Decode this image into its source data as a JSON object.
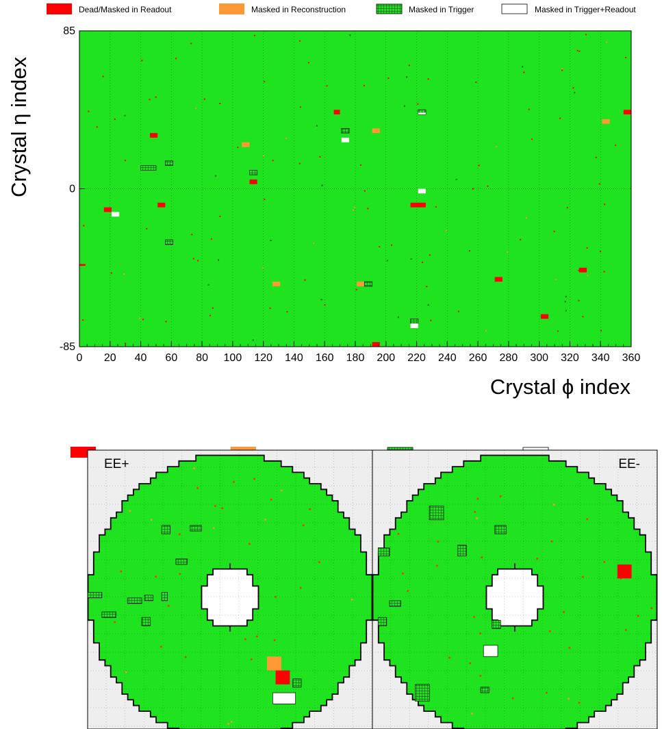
{
  "colors": {
    "active": "#1ee31e",
    "dead_readout": "#ff0000",
    "masked_reco": "#ff9933",
    "masked_trigger": "#1ee31e",
    "masked_trigger_readout": "#ffffff",
    "outside": "#eeeeee"
  },
  "legend": {
    "dead": "Dead/Masked in Readout",
    "reco": "Masked in Reconstruction",
    "trigger": "Masked in Trigger",
    "trigger_readout": "Masked in Trigger+Readout"
  },
  "barrel": {
    "xlabel_prefix": "Crystal",
    "xlabel_symbol": "ϕ",
    "xlabel_suffix": "index",
    "ylabel_prefix": "Crystal",
    "ylabel_symbol": "η",
    "ylabel_suffix": "index",
    "xlim": [
      0,
      360
    ],
    "ylim": [
      -85,
      85
    ],
    "xticks": [
      "0",
      "20",
      "40",
      "60",
      "80",
      "100",
      "120",
      "140",
      "160",
      "180",
      "200",
      "220",
      "240",
      "260",
      "280",
      "300",
      "320",
      "340",
      "360"
    ],
    "yticks": [
      "85",
      "0",
      "-85"
    ],
    "dead_regions": [
      {
        "phi": [
          0,
          4
        ],
        "eta": [
          -83,
          -81
        ]
      },
      {
        "phi": [
          166,
          170
        ],
        "eta": [
          80,
          85
        ]
      },
      {
        "phi": [
          355,
          360
        ],
        "eta": [
          80,
          85
        ]
      },
      {
        "phi": [
          46,
          51
        ],
        "eta": [
          55,
          60
        ]
      },
      {
        "phi": [
          111,
          116
        ],
        "eta": [
          5,
          10
        ]
      },
      {
        "phi": [
          16,
          21
        ],
        "eta": [
          -25,
          -20
        ]
      },
      {
        "phi": [
          51,
          56
        ],
        "eta": [
          -20,
          -15
        ]
      },
      {
        "phi": [
          216,
          226
        ],
        "eta": [
          -20,
          -15
        ]
      },
      {
        "phi": [
          271,
          276
        ],
        "eta": [
          -100,
          -95
        ]
      },
      {
        "phi": [
          326,
          331
        ],
        "eta": [
          -90,
          -85
        ]
      },
      {
        "phi": [
          301,
          306
        ],
        "eta": [
          -140,
          -135
        ]
      },
      {
        "phi": [
          191,
          196
        ],
        "eta": [
          -170,
          -165
        ]
      }
    ],
    "reco_regions": [
      {
        "phi": [
          106,
          111
        ],
        "eta": [
          45,
          50
        ]
      },
      {
        "phi": [
          191,
          196
        ],
        "eta": [
          60,
          65
        ]
      },
      {
        "phi": [
          341,
          346
        ],
        "eta": [
          70,
          75
        ]
      },
      {
        "phi": [
          126,
          131
        ],
        "eta": [
          -105,
          -100
        ]
      },
      {
        "phi": [
          181,
          186
        ],
        "eta": [
          -105,
          -100
        ]
      }
    ],
    "trigger_regions": [
      {
        "phi": [
          40,
          50
        ],
        "eta": [
          20,
          25
        ]
      },
      {
        "phi": [
          56,
          61
        ],
        "eta": [
          25,
          30
        ]
      },
      {
        "phi": [
          111,
          116
        ],
        "eta": [
          15,
          20
        ]
      },
      {
        "phi": [
          171,
          176
        ],
        "eta": [
          60,
          65
        ]
      },
      {
        "phi": [
          56,
          61
        ],
        "eta": [
          -60,
          -55
        ]
      },
      {
        "phi": [
          186,
          191
        ],
        "eta": [
          -105,
          -100
        ]
      },
      {
        "phi": [
          216,
          221
        ],
        "eta": [
          -145,
          -140
        ]
      },
      {
        "phi": [
          221,
          226
        ],
        "eta": [
          80,
          85
        ]
      }
    ],
    "trigger_readout_regions": [
      {
        "phi": [
          171,
          176
        ],
        "eta": [
          50,
          55
        ]
      },
      {
        "phi": [
          221,
          226
        ],
        "eta": [
          -5,
          0
        ]
      },
      {
        "phi": [
          21,
          26
        ],
        "eta": [
          -30,
          -25
        ]
      },
      {
        "phi": [
          216,
          221
        ],
        "eta": [
          -150,
          -145
        ]
      },
      {
        "phi": [
          221,
          226
        ],
        "eta": [
          80,
          82
        ]
      }
    ]
  },
  "endcap": {
    "left_label": "EE+",
    "right_label": "EE-",
    "dead_regions": [
      {
        "side": "plus",
        "x": [
          66,
          71
        ],
        "y": [
          16,
          21
        ]
      },
      {
        "side": "minus",
        "x": [
          86,
          91
        ],
        "y": [
          54,
          59
        ]
      }
    ],
    "reco_regions": [
      {
        "side": "plus",
        "x": [
          63,
          68
        ],
        "y": [
          21,
          26
        ]
      }
    ],
    "trigger_regions": [
      {
        "side": "plus",
        "x": [
          26,
          29
        ],
        "y": [
          70,
          73
        ]
      },
      {
        "side": "plus",
        "x": [
          36,
          40
        ],
        "y": [
          71,
          73
        ]
      },
      {
        "side": "plus",
        "x": [
          31,
          35
        ],
        "y": [
          59,
          61
        ]
      },
      {
        "side": "plus",
        "x": [
          0,
          5
        ],
        "y": [
          47,
          49
        ]
      },
      {
        "side": "plus",
        "x": [
          5,
          10
        ],
        "y": [
          40,
          42
        ]
      },
      {
        "side": "plus",
        "x": [
          14,
          19
        ],
        "y": [
          45,
          47
        ]
      },
      {
        "side": "plus",
        "x": [
          20,
          23
        ],
        "y": [
          46,
          48
        ]
      },
      {
        "side": "plus",
        "x": [
          26,
          28
        ],
        "y": [
          46,
          49
        ]
      },
      {
        "side": "plus",
        "x": [
          19,
          22
        ],
        "y": [
          37,
          40
        ]
      },
      {
        "side": "plus",
        "x": [
          72,
          75
        ],
        "y": [
          15,
          18
        ]
      },
      {
        "side": "minus",
        "x": [
          20,
          25
        ],
        "y": [
          75,
          80
        ]
      },
      {
        "side": "minus",
        "x": [
          43,
          47
        ],
        "y": [
          70,
          73
        ]
      },
      {
        "side": "minus",
        "x": [
          30,
          33
        ],
        "y": [
          62,
          66
        ]
      },
      {
        "side": "minus",
        "x": [
          2,
          6
        ],
        "y": [
          62,
          65
        ]
      },
      {
        "side": "minus",
        "x": [
          6,
          10
        ],
        "y": [
          44,
          46
        ]
      },
      {
        "side": "minus",
        "x": [
          2,
          5
        ],
        "y": [
          37,
          40
        ]
      },
      {
        "side": "minus",
        "x": [
          15,
          20
        ],
        "y": [
          10,
          16
        ]
      },
      {
        "side": "minus",
        "x": [
          42,
          45
        ],
        "y": [
          36,
          39
        ]
      },
      {
        "side": "minus",
        "x": [
          38,
          41
        ],
        "y": [
          13,
          15
        ]
      }
    ],
    "trigger_readout_regions": [
      {
        "side": "plus",
        "x": [
          65,
          73
        ],
        "y": [
          9,
          13
        ]
      },
      {
        "side": "minus",
        "x": [
          39,
          44
        ],
        "y": [
          26,
          30
        ]
      }
    ]
  }
}
